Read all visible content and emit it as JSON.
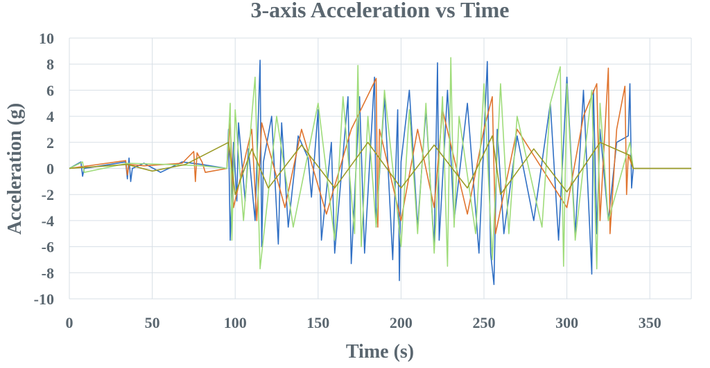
{
  "chart_data": {
    "type": "line",
    "title": "3-axis Acceleration vs Time",
    "xlabel": "Time (s)",
    "ylabel": "Acceleration (g)",
    "xlim": [
      0,
      375
    ],
    "ylim": [
      -10,
      10
    ],
    "x_ticks": [
      0,
      50,
      100,
      150,
      200,
      250,
      300,
      350
    ],
    "y_ticks": [
      10,
      8,
      6,
      4,
      2,
      0,
      -2,
      -4,
      -6,
      -8,
      -10
    ],
    "grid": true,
    "legend": "none",
    "colors": {
      "series_blue": "#2f6fc4",
      "series_orange": "#e0742e",
      "series_lightgreen": "#9fdc7a",
      "series_olive": "#9b9b27",
      "grid": "#d7dfe6",
      "text": "#5b6770"
    },
    "series": [
      {
        "color": "#2f6fc4",
        "x": [
          0,
          7,
          8,
          9,
          34,
          35,
          36,
          37,
          38,
          45,
          55,
          68,
          80,
          95,
          96,
          97,
          99,
          101,
          102,
          106,
          108,
          112,
          115,
          116,
          117,
          122,
          126,
          128,
          132,
          138,
          144,
          146,
          150,
          152,
          158,
          160,
          168,
          170,
          175,
          178,
          184,
          185,
          190,
          195,
          198,
          199,
          200,
          205,
          210,
          215,
          220,
          222,
          223,
          228,
          232,
          240,
          247,
          252,
          254,
          256,
          258,
          262,
          270,
          280,
          290,
          295,
          300,
          305,
          310,
          315,
          316,
          318,
          320,
          325,
          330,
          337,
          338,
          339,
          340,
          375
        ],
        "y": [
          0,
          0.5,
          -0.6,
          0,
          0.5,
          -0.8,
          0.8,
          -1.0,
          0,
          0.4,
          -0.3,
          0.5,
          0.3,
          0,
          3.0,
          -5.5,
          2.0,
          -2.5,
          3.5,
          -2.5,
          1.5,
          -4.0,
          8.3,
          -6.0,
          0.5,
          4.0,
          -5.8,
          3.5,
          -4.5,
          2.5,
          0.8,
          -2.2,
          4.5,
          -5.5,
          2.0,
          -6.5,
          5.5,
          -7.3,
          5.5,
          -6.5,
          7.0,
          -4.5,
          5.5,
          -7.0,
          4.5,
          -8.6,
          0.5,
          6.0,
          -4.5,
          4.5,
          -6.0,
          8.1,
          -5.5,
          6.0,
          -4.0,
          5.0,
          -6.5,
          8.2,
          -6.5,
          -8.9,
          3.0,
          -5.0,
          2.5,
          -4.0,
          5.0,
          -5.5,
          7.0,
          -5.0,
          6.0,
          -8.1,
          6.0,
          -5.0,
          3.0,
          -4.0,
          2.0,
          2.5,
          6.5,
          -1.5,
          0,
          0
        ]
      },
      {
        "color": "#e0742e",
        "x": [
          0,
          34,
          35,
          36,
          45,
          68,
          75,
          76,
          77,
          80,
          82,
          95,
          97,
          99,
          110,
          113,
          116,
          130,
          140,
          155,
          170,
          185,
          186,
          187,
          200,
          210,
          220,
          225,
          240,
          250,
          255,
          257,
          270,
          300,
          310,
          318,
          320,
          325,
          326,
          330,
          335,
          336,
          337,
          340,
          375
        ],
        "y": [
          0,
          0.6,
          -0.5,
          0.3,
          0.2,
          0.4,
          1.3,
          -1.0,
          1.2,
          0.5,
          -0.3,
          0,
          3.5,
          -3.0,
          3.0,
          -4.0,
          3.5,
          -3.0,
          3.0,
          -3.5,
          3.0,
          6.9,
          -4.5,
          3.0,
          -4.0,
          3.0,
          -3.0,
          4.5,
          -3.5,
          3.0,
          5.5,
          -5.0,
          3.0,
          -3.0,
          4.0,
          6.5,
          -4.0,
          7.7,
          -5.0,
          3.0,
          6.3,
          -2.0,
          1.0,
          0,
          0
        ]
      },
      {
        "color": "#9fdc7a",
        "x": [
          0,
          8,
          9,
          35,
          60,
          80,
          95,
          97,
          98,
          100,
          105,
          110,
          112,
          115,
          125,
          135,
          150,
          160,
          165,
          172,
          174,
          176,
          180,
          185,
          190,
          200,
          205,
          210,
          215,
          220,
          225,
          228,
          230,
          232,
          235,
          245,
          250,
          255,
          260,
          265,
          270,
          285,
          290,
          296,
          298,
          300,
          305,
          315,
          318,
          320,
          325,
          338,
          340,
          375
        ],
        "y": [
          0,
          0.5,
          -0.3,
          0.4,
          0.3,
          0.2,
          0,
          5.0,
          -5.5,
          4.5,
          -4.0,
          4.0,
          7.0,
          -7.7,
          4.0,
          -4.5,
          5.0,
          -5.5,
          5.5,
          -5.0,
          7.9,
          -6.0,
          4.0,
          -4.5,
          6.0,
          -6.0,
          4.5,
          -5.0,
          5.0,
          -6.5,
          5.5,
          -7.5,
          8.5,
          -4.5,
          4.0,
          -5.0,
          6.5,
          -7.0,
          6.5,
          -5.0,
          4.0,
          -4.5,
          5.0,
          7.8,
          -7.5,
          6.5,
          -5.5,
          6.0,
          -7.7,
          5.0,
          -4.0,
          2.0,
          0,
          0
        ]
      },
      {
        "color": "#9b9b27",
        "x": [
          0,
          35,
          50,
          70,
          96,
          100,
          110,
          120,
          140,
          160,
          180,
          200,
          220,
          240,
          255,
          260,
          280,
          300,
          320,
          338,
          340,
          375
        ],
        "y": [
          0,
          0.3,
          -0.2,
          0.3,
          2.0,
          -2.0,
          1.5,
          -1.5,
          1.8,
          -1.5,
          2.0,
          -1.5,
          1.8,
          -1.5,
          2.5,
          -2.0,
          1.5,
          -1.8,
          2.0,
          1.0,
          0,
          0
        ]
      }
    ]
  }
}
